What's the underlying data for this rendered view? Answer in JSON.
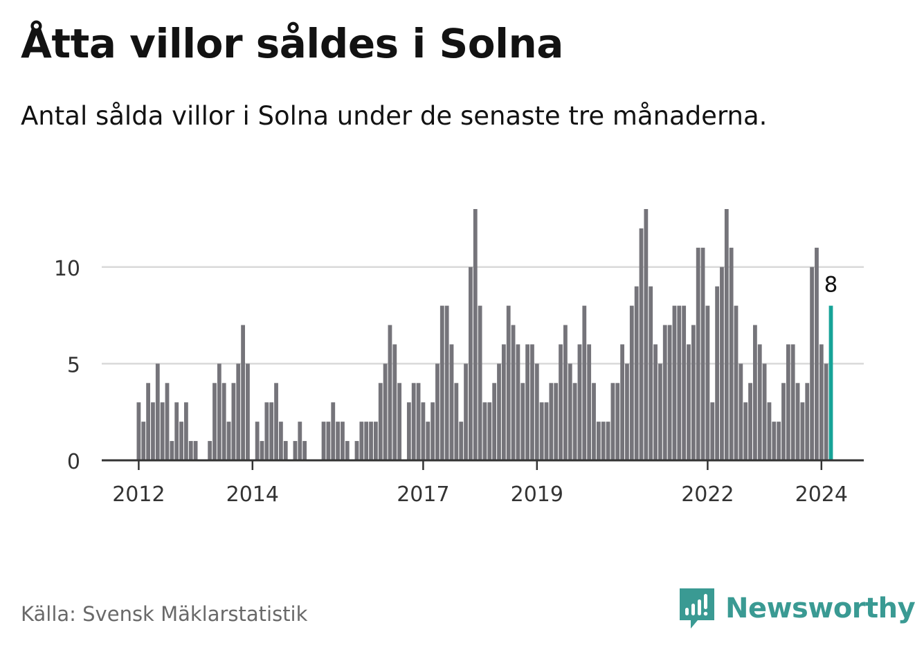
{
  "title": "Åtta villor såldes i Solna",
  "subtitle": "Antal sålda villor i Solna under de senaste tre månaderna.",
  "source": "Källa: Svensk Mäklarstatistik",
  "brand": {
    "name": "Newsworthy",
    "icon": "newsworthy-logo-icon",
    "color": "#3a9a93"
  },
  "colors": {
    "bar": "#75747a",
    "highlight": "#17a398",
    "grid": "#d9d9d9",
    "axis": "#333333",
    "tick_text": "#333333"
  },
  "chart_data": {
    "type": "bar",
    "title": "Åtta villor såldes i Solna",
    "xlabel": "",
    "ylabel": "",
    "ylim": [
      0,
      13
    ],
    "yticks": [
      0,
      5,
      10
    ],
    "grid": true,
    "start": "2012-01",
    "x_tick_labels": [
      {
        "label": "2012",
        "index": 0
      },
      {
        "label": "2014",
        "index": 24
      },
      {
        "label": "2017",
        "index": 60
      },
      {
        "label": "2019",
        "index": 84
      },
      {
        "label": "2022",
        "index": 120
      },
      {
        "label": "2024",
        "index": 144
      }
    ],
    "values": [
      3,
      2,
      4,
      3,
      5,
      3,
      4,
      1,
      3,
      2,
      3,
      1,
      1,
      0,
      0,
      1,
      4,
      5,
      4,
      2,
      4,
      5,
      7,
      5,
      0,
      2,
      1,
      3,
      3,
      4,
      2,
      1,
      0,
      1,
      2,
      1,
      0,
      0,
      0,
      2,
      2,
      3,
      2,
      2,
      1,
      0,
      1,
      2,
      2,
      2,
      2,
      4,
      5,
      7,
      6,
      4,
      0,
      3,
      4,
      4,
      3,
      2,
      3,
      5,
      8,
      8,
      6,
      4,
      2,
      5,
      10,
      13,
      8,
      3,
      3,
      4,
      5,
      6,
      8,
      7,
      6,
      4,
      6,
      6,
      5,
      3,
      3,
      4,
      4,
      6,
      7,
      5,
      4,
      6,
      8,
      6,
      4,
      2,
      2,
      2,
      4,
      4,
      6,
      5,
      8,
      9,
      12,
      13,
      9,
      6,
      5,
      7,
      7,
      8,
      8,
      8,
      6,
      7,
      11,
      11,
      8,
      3,
      9,
      10,
      13,
      11,
      8,
      5,
      3,
      4,
      7,
      6,
      5,
      3,
      2,
      2,
      4,
      6,
      6,
      4,
      3,
      4,
      10,
      11,
      6,
      5,
      8
    ],
    "highlight": {
      "index": 146,
      "value": 8,
      "label": "8"
    }
  }
}
